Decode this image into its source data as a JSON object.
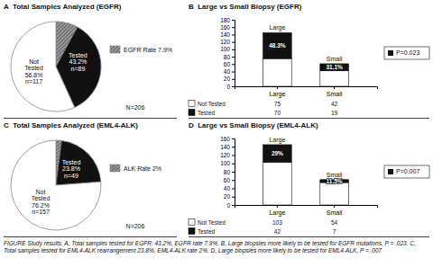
{
  "chart_data": [
    {
      "type": "pie",
      "title": "A  Total Samples Analyzed (EGFR)",
      "categories": [
        "EGFR Rate 7.9%",
        null,
        null
      ],
      "values": [
        7.9,
        35.3,
        56.8
      ],
      "colors": [
        "#777777",
        "#111111",
        "#ffffff"
      ],
      "legend": "right",
      "annotations": [
        "Tested\n43.2%\nn=89",
        "Not\nTested\n56.8%\nn=117",
        "N=206"
      ]
    },
    {
      "type": "bar",
      "title": "B  Large vs Small Biopsy (EGFR)",
      "stacked": true,
      "categories": [
        "Large",
        "Small"
      ],
      "series": [
        {
          "name": "Not Tested",
          "color": "#ffffff",
          "values": [
            75,
            42
          ]
        },
        {
          "name": "Tested",
          "color": "#111111",
          "values": [
            70,
            19
          ],
          "percent_labels": [
            "48.3%",
            "31.1%"
          ]
        }
      ],
      "ylim": [
        0,
        180
      ],
      "yticks": [
        0,
        20,
        40,
        60,
        80,
        100,
        120,
        140,
        160,
        180
      ],
      "annotations": [
        "P=0.023"
      ]
    },
    {
      "type": "pie",
      "title": "C  Total Samples Analyzed (EML4-ALK)",
      "categories": [
        "ALK Rate 2%",
        null,
        null
      ],
      "values": [
        2,
        21.8,
        76.2
      ],
      "colors": [
        "#777777",
        "#111111",
        "#ffffff"
      ],
      "legend": "right",
      "annotations": [
        "Tested\n23.8%\nn=49",
        "Not\nTested\n76.2%\nn=157",
        "N=206"
      ]
    },
    {
      "type": "bar",
      "title": "D  Large vs Small Biopsy (EML4-ALK)",
      "stacked": true,
      "categories": [
        "Large",
        "Small"
      ],
      "series": [
        {
          "name": "Not Tested",
          "color": "#ffffff",
          "values": [
            103,
            54
          ]
        },
        {
          "name": "Tested",
          "color": "#111111",
          "values": [
            42,
            7
          ],
          "percent_labels": [
            "29%",
            "11.5%"
          ]
        }
      ],
      "ylim": [
        0,
        160
      ],
      "yticks": [
        0,
        20,
        40,
        60,
        80,
        100,
        120,
        140,
        160
      ],
      "annotations": [
        "P=0.007"
      ]
    }
  ],
  "caption": "FIGURE Study results. A, Total samples tested for EGFR: 43.2%, EGFR rate 7.9%. B, Large biopsies more likely to be tested for EGFR mutations, P = .023. C, Total samples tested for EML4-ALK rearrangement 23.8%, EML4-ALK rate 2%. D, Large biopsies more likely to be tested for EML4-ALK, P = .007"
}
